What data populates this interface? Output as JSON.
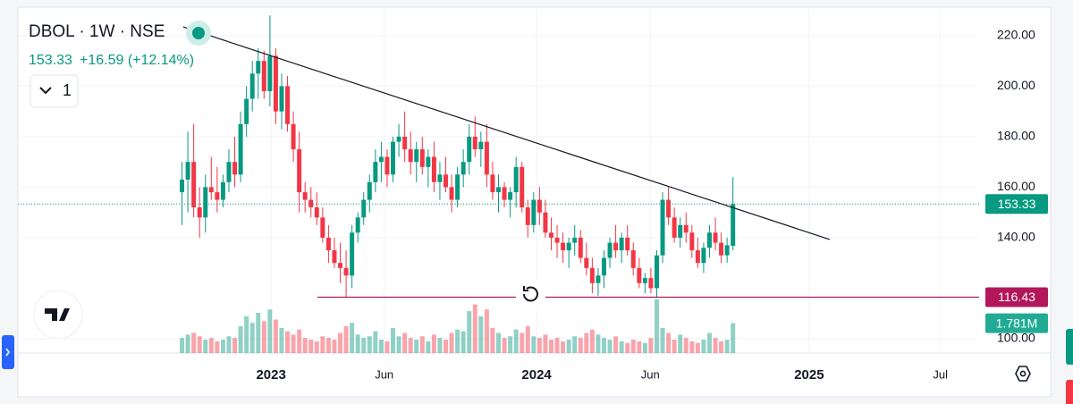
{
  "chart_data": {
    "type": "candlestick",
    "title": "DBOL · 1W · NSE",
    "last_price": "153.33",
    "change": "+16.59 (+12.14%)",
    "interval_count": "1",
    "up_color": "#089981",
    "down_color": "#f23645",
    "xlim": [
      -28,
      136
    ],
    "xticks": [
      {
        "value": 15.2,
        "label": "2023"
      },
      {
        "value": 34.5,
        "label": "Jun"
      },
      {
        "value": 60.5,
        "label": "2024"
      },
      {
        "value": 79.9,
        "label": "Jun"
      },
      {
        "value": 107,
        "label": "2025"
      },
      {
        "value": 129.4,
        "label": "Jul"
      }
    ],
    "ylim": [
      94.3,
      230.6
    ],
    "yticks": [
      {
        "value": 100,
        "label": "100.00"
      },
      {
        "value": 140,
        "label": "140.00"
      },
      {
        "value": 160,
        "label": "160.00"
      },
      {
        "value": 180,
        "label": "180.00"
      },
      {
        "value": 200,
        "label": "200.00"
      },
      {
        "value": 220,
        "label": "220.00"
      }
    ],
    "grid": true,
    "candles": [
      [
        158,
        170,
        145,
        163
      ],
      [
        163,
        182,
        150,
        170
      ],
      [
        170,
        185,
        148,
        152
      ],
      [
        152,
        160,
        140,
        148
      ],
      [
        148,
        165,
        142,
        160
      ],
      [
        160,
        172,
        155,
        158
      ],
      [
        158,
        168,
        150,
        155
      ],
      [
        155,
        165,
        152,
        162
      ],
      [
        162,
        175,
        158,
        170
      ],
      [
        170,
        180,
        160,
        165
      ],
      [
        165,
        190,
        162,
        185
      ],
      [
        185,
        200,
        180,
        195
      ],
      [
        195,
        210,
        190,
        205
      ],
      [
        205,
        215,
        195,
        210
      ],
      [
        210,
        214,
        195,
        198
      ],
      [
        198,
        228,
        192,
        212
      ],
      [
        212,
        215,
        185,
        190
      ],
      [
        190,
        205,
        183,
        200
      ],
      [
        200,
        204,
        182,
        185
      ],
      [
        185,
        190,
        170,
        175
      ],
      [
        175,
        182,
        150,
        158
      ],
      [
        158,
        162,
        150,
        155
      ],
      [
        155,
        160,
        148,
        152
      ],
      [
        152,
        158,
        145,
        148
      ],
      [
        148,
        152,
        138,
        140
      ],
      [
        140,
        145,
        130,
        135
      ],
      [
        135,
        140,
        128,
        130
      ],
      [
        130,
        138,
        122,
        128
      ],
      [
        128,
        135,
        116.43,
        125
      ],
      [
        125,
        145,
        120,
        142
      ],
      [
        142,
        150,
        138,
        148
      ],
      [
        148,
        158,
        145,
        155
      ],
      [
        155,
        165,
        150,
        162
      ],
      [
        162,
        175,
        158,
        170
      ],
      [
        170,
        178,
        162,
        172
      ],
      [
        172,
        175,
        160,
        165
      ],
      [
        165,
        180,
        162,
        178
      ],
      [
        178,
        185,
        172,
        180
      ],
      [
        180,
        190,
        170,
        175
      ],
      [
        175,
        182,
        165,
        170
      ],
      [
        170,
        178,
        162,
        175
      ],
      [
        175,
        180,
        165,
        168
      ],
      [
        168,
        175,
        160,
        172
      ],
      [
        172,
        178,
        158,
        162
      ],
      [
        162,
        170,
        155,
        165
      ],
      [
        165,
        172,
        158,
        160
      ],
      [
        160,
        165,
        150,
        155
      ],
      [
        155,
        168,
        152,
        165
      ],
      [
        165,
        175,
        160,
        170
      ],
      [
        170,
        185,
        165,
        180
      ],
      [
        180,
        188,
        172,
        175
      ],
      [
        175,
        182,
        168,
        178
      ],
      [
        178,
        185,
        160,
        165
      ],
      [
        165,
        170,
        155,
        158
      ],
      [
        158,
        165,
        150,
        160
      ],
      [
        160,
        162,
        152,
        155
      ],
      [
        155,
        160,
        148,
        158
      ],
      [
        158,
        172,
        152,
        168
      ],
      [
        168,
        170,
        150,
        152
      ],
      [
        152,
        155,
        140,
        145
      ],
      [
        145,
        158,
        142,
        155
      ],
      [
        155,
        160,
        145,
        150
      ],
      [
        150,
        155,
        140,
        142
      ],
      [
        142,
        148,
        135,
        140
      ],
      [
        140,
        145,
        132,
        138
      ],
      [
        138,
        142,
        130,
        135
      ],
      [
        135,
        140,
        128,
        138
      ],
      [
        138,
        145,
        133,
        140
      ],
      [
        140,
        143,
        130,
        132
      ],
      [
        132,
        138,
        125,
        128
      ],
      [
        128,
        132,
        118,
        122
      ],
      [
        122,
        128,
        117,
        125
      ],
      [
        125,
        135,
        120,
        132
      ],
      [
        132,
        140,
        128,
        138
      ],
      [
        138,
        145,
        132,
        135
      ],
      [
        135,
        142,
        130,
        140
      ],
      [
        140,
        145,
        133,
        135
      ],
      [
        135,
        138,
        125,
        128
      ],
      [
        128,
        132,
        120,
        122
      ],
      [
        122,
        126,
        118,
        124
      ],
      [
        124,
        128,
        118,
        120
      ],
      [
        120,
        135,
        116.5,
        133
      ],
      [
        133,
        158,
        130,
        155
      ],
      [
        155,
        160,
        145,
        148
      ],
      [
        148,
        152,
        138,
        140
      ],
      [
        140,
        148,
        136,
        145
      ],
      [
        145,
        150,
        138,
        142
      ],
      [
        142,
        145,
        132,
        135
      ],
      [
        135,
        140,
        128,
        130
      ],
      [
        130,
        138,
        126,
        136
      ],
      [
        136,
        145,
        132,
        142
      ],
      [
        142,
        148,
        135,
        138
      ],
      [
        138,
        142,
        130,
        133
      ],
      [
        133,
        140,
        130,
        137
      ],
      [
        136.74,
        164,
        135,
        153.33
      ]
    ],
    "volume": [
      0.9,
      1.1,
      1.2,
      1.0,
      0.8,
      0.9,
      0.7,
      0.8,
      1.0,
      0.9,
      1.6,
      2.2,
      1.8,
      2.4,
      1.9,
      2.6,
      2.0,
      1.5,
      1.3,
      1.1,
      1.4,
      0.9,
      0.8,
      0.7,
      1.0,
      0.9,
      0.8,
      1.2,
      1.6,
      1.8,
      1.1,
      0.9,
      1.0,
      1.3,
      0.8,
      0.7,
      1.5,
      1.0,
      1.2,
      0.9,
      0.8,
      1.0,
      0.7,
      1.1,
      0.9,
      0.8,
      1.2,
      1.4,
      1.3,
      2.5,
      2.9,
      2.2,
      2.6,
      1.5,
      1.2,
      0.9,
      1.0,
      1.4,
      1.2,
      1.6,
      1.0,
      0.9,
      1.1,
      0.8,
      0.9,
      0.7,
      0.8,
      1.0,
      0.9,
      1.2,
      1.4,
      1.1,
      0.9,
      0.8,
      1.0,
      0.7,
      0.6,
      0.8,
      0.7,
      0.6,
      0.9,
      3.2,
      1.5,
      1.2,
      0.8,
      1.1,
      0.9,
      0.7,
      0.6,
      0.8,
      1.2,
      0.9,
      0.7,
      0.8,
      1.781
    ],
    "volume_tag": {
      "value": 1.781,
      "label": "1.781M"
    },
    "trendline": {
      "x": [
        0.2,
        110.5
      ],
      "y": [
        223.5,
        139.3
      ]
    },
    "support_line": {
      "value": 116.43,
      "x_start": 23.1
    }
  }
}
